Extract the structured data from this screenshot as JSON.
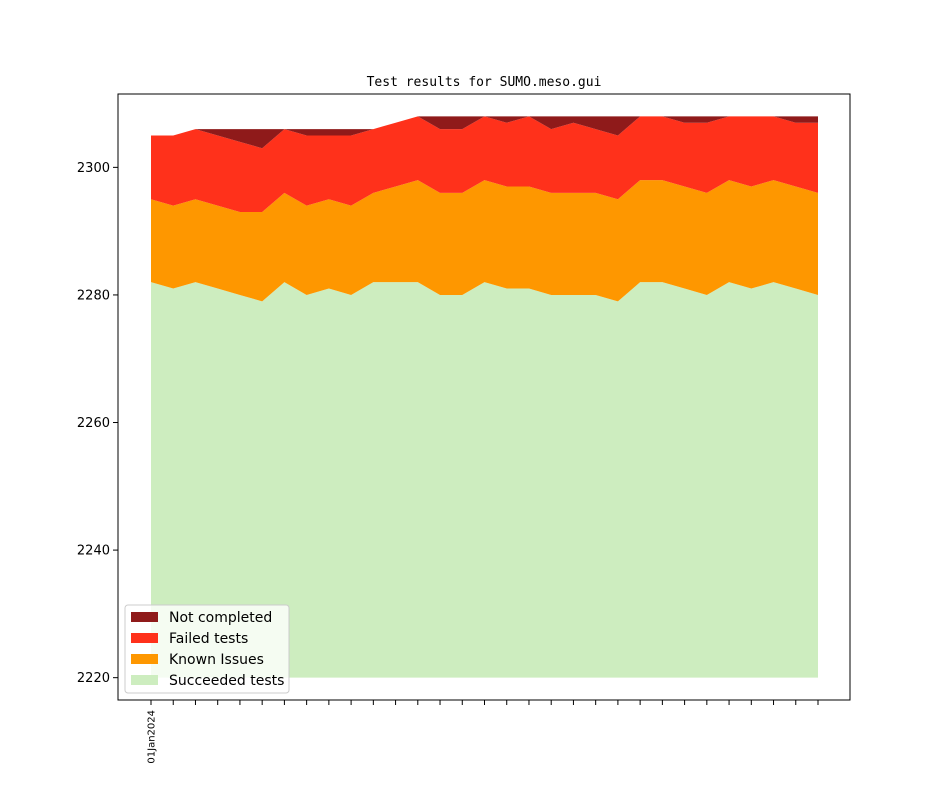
{
  "chart_data": {
    "type": "area",
    "stacked": true,
    "title": "Test results for SUMO.meso.gui",
    "xlabel": "",
    "ylabel": "",
    "ylim": [
      2216.5,
      2311.5
    ],
    "yticks": [
      2220,
      2240,
      2260,
      2280,
      2300
    ],
    "baseline": 2220,
    "x_count": 31,
    "x_tick_labels": [
      {
        "index": 0,
        "label": "01Jan2024"
      }
    ],
    "legend_position": "lower-left",
    "series": [
      {
        "name": "Succeeded tests",
        "color": "#cdedbf",
        "top": [
          2282,
          2281,
          2282,
          2281,
          2280,
          2279,
          2282,
          2280,
          2281,
          2280,
          2282,
          2282,
          2282,
          2280,
          2280,
          2282,
          2281,
          2281,
          2280,
          2280,
          2280,
          2279,
          2282,
          2282,
          2281,
          2280,
          2282,
          2281,
          2282,
          2281,
          2280
        ]
      },
      {
        "name": "Known Issues",
        "color": "#fe9700",
        "top": [
          2295,
          2294,
          2295,
          2294,
          2293,
          2293,
          2296,
          2294,
          2295,
          2294,
          2296,
          2297,
          2298,
          2296,
          2296,
          2298,
          2297,
          2297,
          2296,
          2296,
          2296,
          2295,
          2298,
          2298,
          2297,
          2296,
          2298,
          2297,
          2298,
          2297,
          2296
        ]
      },
      {
        "name": "Failed tests",
        "color": "#ff311b",
        "top": [
          2305,
          2305,
          2306,
          2305,
          2304,
          2303,
          2306,
          2305,
          2305,
          2305,
          2306,
          2307,
          2308,
          2306,
          2306,
          2308,
          2307,
          2308,
          2306,
          2307,
          2306,
          2305,
          2308,
          2308,
          2307,
          2307,
          2308,
          2308,
          2308,
          2307,
          2307
        ]
      },
      {
        "name": "Not completed",
        "color": "#8f1a1a",
        "top": [
          2305,
          2305,
          2306,
          2306,
          2306,
          2306,
          2306,
          2306,
          2306,
          2306,
          2306,
          2307,
          2308,
          2308,
          2308,
          2308,
          2308,
          2308,
          2308,
          2308,
          2308,
          2308,
          2308,
          2308,
          2308,
          2308,
          2308,
          2308,
          2308,
          2308,
          2308
        ]
      }
    ],
    "legend_order": [
      "Not completed",
      "Failed tests",
      "Known Issues",
      "Succeeded tests"
    ]
  }
}
